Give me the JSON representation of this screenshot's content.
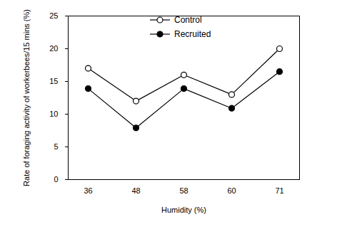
{
  "chart_data": {
    "type": "line",
    "x_label": "Humidity (%)",
    "y_label": "Rate of foraging activity of workerbees/15 mins (%)",
    "categories": [
      "36",
      "48",
      "58",
      "60",
      "71"
    ],
    "series": [
      {
        "name": "Control",
        "color": "#000000",
        "marker": "open circle",
        "values": [
          17,
          12,
          16,
          13,
          20
        ]
      },
      {
        "name": "Recruited",
        "color": "#000000",
        "marker": "filled circle",
        "values": [
          13.9,
          7.9,
          13.9,
          10.9,
          16.5
        ]
      }
    ],
    "ylim": [
      0,
      25
    ],
    "yticks": [
      0,
      5,
      10,
      15,
      20,
      25
    ],
    "grid": false,
    "legend": "top"
  }
}
